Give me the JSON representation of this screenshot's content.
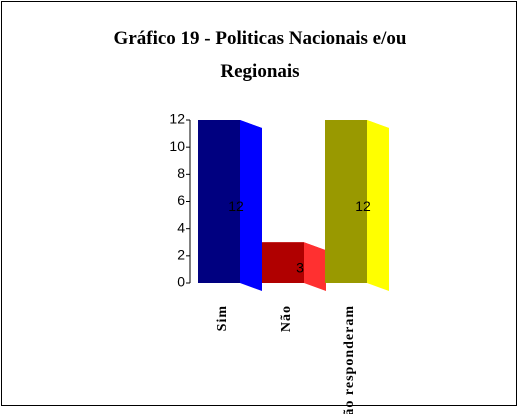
{
  "chart_data": {
    "type": "bar3d",
    "title": "Gráfico 19 - Politicas Nacionais e/ou Regionais",
    "categories": [
      "Sim",
      "Não",
      "Não responderam"
    ],
    "values": [
      12,
      3,
      12
    ],
    "colors": [
      "#000080",
      "#b00000",
      "#999900"
    ],
    "side_colors": [
      "#0000ff",
      "#ff3030",
      "#ffff00"
    ],
    "ylim": [
      0,
      12
    ],
    "yticks": [
      0,
      2,
      4,
      6,
      8,
      10,
      12
    ]
  }
}
